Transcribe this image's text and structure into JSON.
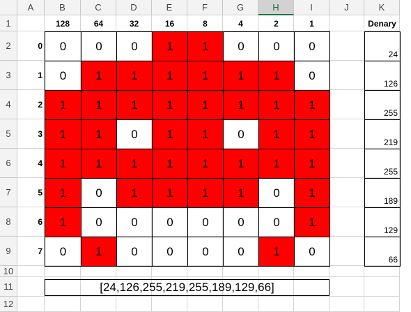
{
  "column_headers": [
    "A",
    "B",
    "C",
    "D",
    "E",
    "F",
    "G",
    "H",
    "I",
    "J",
    "K"
  ],
  "row_headers": [
    "1",
    "2",
    "3",
    "4",
    "5",
    "6",
    "7",
    "8",
    "9",
    "10",
    "11",
    "12"
  ],
  "active_column": "H",
  "place_values": [
    128,
    64,
    32,
    16,
    8,
    4,
    2,
    1
  ],
  "denary_header": "Denary",
  "row_labels": [
    0,
    1,
    2,
    3,
    4,
    5,
    6,
    7
  ],
  "bits": [
    [
      0,
      0,
      0,
      1,
      1,
      0,
      0,
      0
    ],
    [
      0,
      1,
      1,
      1,
      1,
      1,
      1,
      0
    ],
    [
      1,
      1,
      1,
      1,
      1,
      1,
      1,
      1
    ],
    [
      1,
      1,
      0,
      1,
      1,
      0,
      1,
      1
    ],
    [
      1,
      1,
      1,
      1,
      1,
      1,
      1,
      1
    ],
    [
      1,
      0,
      1,
      1,
      1,
      1,
      0,
      1
    ],
    [
      1,
      0,
      0,
      0,
      0,
      0,
      0,
      1
    ],
    [
      0,
      1,
      0,
      0,
      0,
      0,
      1,
      0
    ]
  ],
  "one_fill": "#ff0000",
  "denary": [
    24,
    126,
    255,
    219,
    255,
    189,
    129,
    66
  ],
  "result": "[24,126,255,219,255,189,129,66]"
}
